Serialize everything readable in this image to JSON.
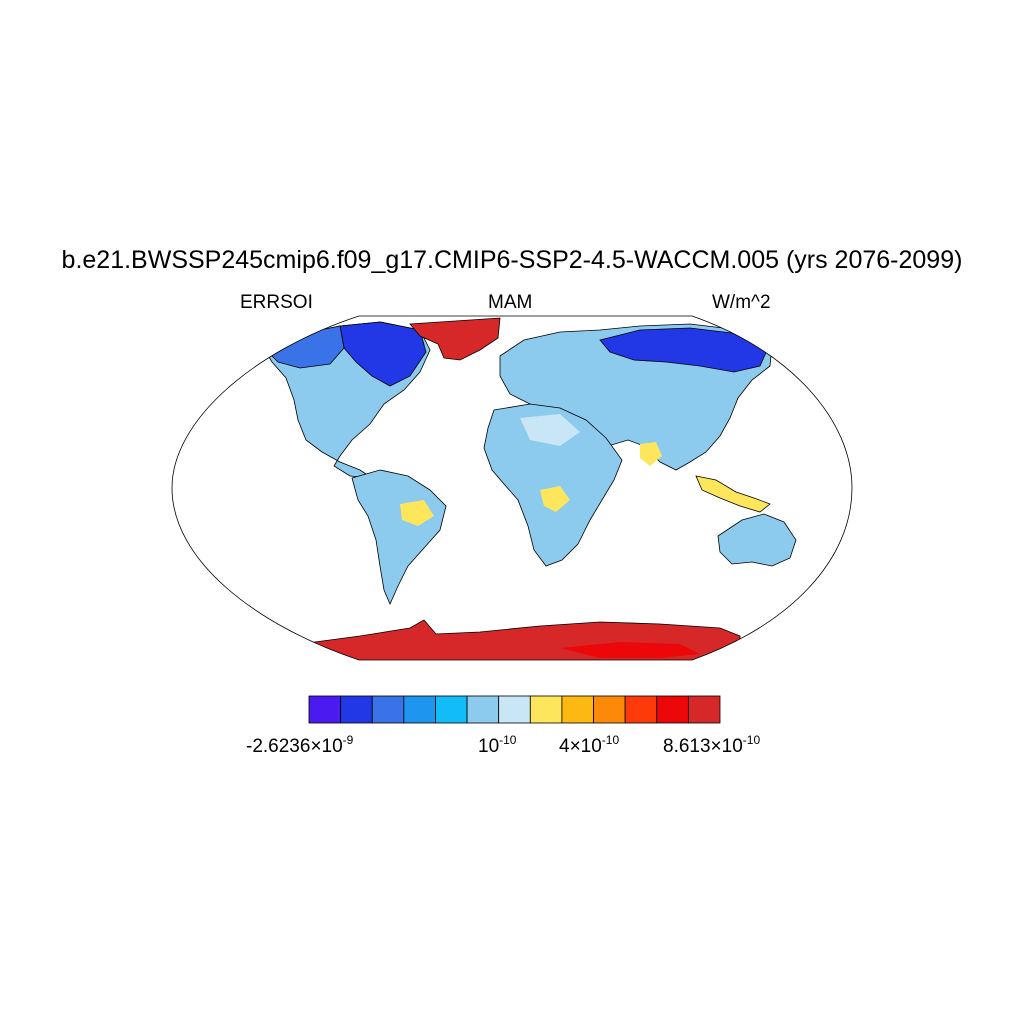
{
  "title": "b.e21.BWSSP245cmip6.f09_g17.CMIP6-SSP2-4.5-WACCM.005 (yrs 2076-2099)",
  "subtitle_left": "ERRSOI",
  "subtitle_center": "MAM",
  "subtitle_right": "W/m^2",
  "colorbar": {
    "colors": [
      "#4a1af0",
      "#2238e6",
      "#3a72e8",
      "#1e96f0",
      "#12bcf6",
      "#8ccaee",
      "#c8e6f6",
      "#fde65c",
      "#fdb812",
      "#fc8a08",
      "#fc3a0a",
      "#ec0808",
      "#d62828"
    ],
    "labels": [
      {
        "mantissa": "-2.6236×10",
        "exp": "-9"
      },
      {
        "mantissa": "10",
        "exp": "-10"
      },
      {
        "mantissa": "4×10",
        "exp": "-10"
      },
      {
        "mantissa": "8.613×10",
        "exp": "-10"
      }
    ]
  },
  "colors": {
    "ocean": "#ffffff",
    "land_base": "#8ccaee",
    "antarctica": "#d62828",
    "greenland": "#d62828",
    "high_lat_blue": "#3a72e8"
  }
}
